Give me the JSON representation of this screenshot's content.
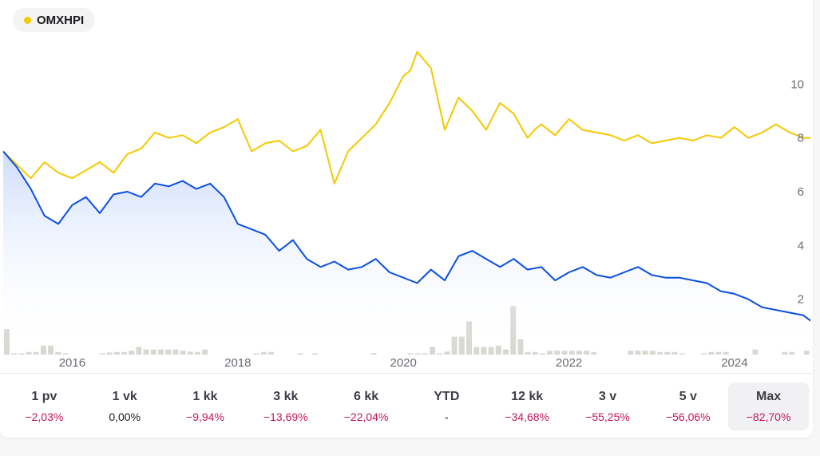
{
  "legend": {
    "label": "OMXHPI",
    "dot_color": "#f5c800"
  },
  "colors": {
    "index_line": "#f5c800",
    "price_line": "#0b4fe0",
    "volume": "#d9d7d2",
    "area_top": "#c9d9fb"
  },
  "chart_data": {
    "type": "line",
    "title": "",
    "xlabel": "",
    "ylabel": "",
    "x_ticks": [
      "2016",
      "2018",
      "2020",
      "2022",
      "2024"
    ],
    "y_ticks": [
      "2",
      "4",
      "6",
      "8",
      "10"
    ],
    "ylim": [
      0,
      12
    ],
    "x_range": [
      "2015-03",
      "2024-12"
    ],
    "grid": false,
    "series": [
      {
        "name": "OMXHPI",
        "color": "#f5c800",
        "x": [
          "2015-03",
          "2015-05",
          "2015-07",
          "2015-09",
          "2015-11",
          "2016-01",
          "2016-03",
          "2016-05",
          "2016-07",
          "2016-09",
          "2016-11",
          "2017-01",
          "2017-03",
          "2017-05",
          "2017-07",
          "2017-09",
          "2017-11",
          "2018-01",
          "2018-03",
          "2018-05",
          "2018-07",
          "2018-09",
          "2018-11",
          "2019-01",
          "2019-03",
          "2019-05",
          "2019-07",
          "2019-09",
          "2019-11",
          "2020-01",
          "2020-02",
          "2020-03",
          "2020-05",
          "2020-07",
          "2020-09",
          "2020-11",
          "2021-01",
          "2021-03",
          "2021-05",
          "2021-07",
          "2021-08",
          "2021-09",
          "2021-11",
          "2022-01",
          "2022-03",
          "2022-05",
          "2022-07",
          "2022-09",
          "2022-11",
          "2023-01",
          "2023-03",
          "2023-05",
          "2023-07",
          "2023-09",
          "2023-11",
          "2024-01",
          "2024-03",
          "2024-05",
          "2024-07",
          "2024-09",
          "2024-11",
          "2024-12"
        ],
        "y": [
          7.5,
          7.0,
          6.5,
          7.1,
          6.7,
          6.5,
          6.8,
          7.1,
          6.7,
          7.4,
          7.6,
          8.2,
          8.0,
          8.1,
          7.8,
          8.2,
          8.4,
          8.7,
          7.5,
          7.8,
          7.9,
          7.5,
          7.7,
          8.3,
          6.3,
          7.5,
          8.0,
          8.5,
          9.3,
          10.3,
          10.5,
          11.2,
          10.6,
          8.3,
          9.5,
          9.0,
          8.3,
          9.3,
          8.9,
          8.0,
          8.3,
          8.5,
          8.1,
          8.7,
          8.3,
          8.2,
          8.1,
          7.9,
          8.1,
          7.8,
          7.9,
          8.0,
          7.9,
          8.1,
          8.0,
          8.4,
          8.0,
          8.2,
          8.5,
          8.2,
          8.0,
          8.0
        ]
      },
      {
        "name": "",
        "color": "#0b4fe0",
        "x": [
          "2015-03",
          "2015-05",
          "2015-07",
          "2015-09",
          "2015-11",
          "2016-01",
          "2016-03",
          "2016-05",
          "2016-07",
          "2016-09",
          "2016-11",
          "2017-01",
          "2017-03",
          "2017-05",
          "2017-07",
          "2017-09",
          "2017-11",
          "2018-01",
          "2018-03",
          "2018-05",
          "2018-07",
          "2018-09",
          "2018-11",
          "2019-01",
          "2019-03",
          "2019-05",
          "2019-07",
          "2019-09",
          "2019-11",
          "2020-01",
          "2020-03",
          "2020-05",
          "2020-07",
          "2020-09",
          "2020-11",
          "2021-01",
          "2021-03",
          "2021-05",
          "2021-07",
          "2021-09",
          "2021-11",
          "2022-01",
          "2022-03",
          "2022-05",
          "2022-07",
          "2022-09",
          "2022-11",
          "2023-01",
          "2023-03",
          "2023-05",
          "2023-07",
          "2023-09",
          "2023-11",
          "2024-01",
          "2024-03",
          "2024-05",
          "2024-07",
          "2024-09",
          "2024-11",
          "2024-12"
        ],
        "y": [
          7.5,
          6.9,
          6.1,
          5.1,
          4.8,
          5.5,
          5.8,
          5.2,
          5.9,
          6.0,
          5.8,
          6.3,
          6.2,
          6.4,
          6.1,
          6.3,
          5.8,
          4.8,
          4.6,
          4.4,
          3.8,
          4.2,
          3.5,
          3.2,
          3.4,
          3.1,
          3.2,
          3.5,
          3.0,
          2.8,
          2.6,
          3.1,
          2.7,
          3.6,
          3.8,
          3.5,
          3.2,
          3.5,
          3.1,
          3.2,
          2.7,
          3.0,
          3.2,
          2.9,
          2.8,
          3.0,
          3.2,
          2.9,
          2.8,
          2.8,
          2.7,
          2.6,
          2.3,
          2.2,
          2.0,
          1.7,
          1.6,
          1.5,
          1.4,
          1.2
        ]
      }
    ],
    "volume": [
      1.0,
      0.05,
      0.05,
      0.1,
      0.1,
      0.35,
      0.35,
      0.1,
      0.05,
      0,
      0,
      0,
      0,
      0.05,
      0.08,
      0.1,
      0.1,
      0.15,
      0.3,
      0.2,
      0.2,
      0.2,
      0.2,
      0.2,
      0.15,
      0.12,
      0.1,
      0.2,
      0,
      0,
      0,
      0,
      0,
      0,
      0.05,
      0.1,
      0.1,
      0,
      0,
      0,
      0.05,
      0,
      0.05,
      0,
      0,
      0,
      0,
      0,
      0,
      0,
      0.06,
      0,
      0,
      0,
      0,
      0.05,
      0.05,
      0.05,
      0.3,
      0.05,
      0.12,
      0.7,
      0.7,
      1.3,
      0.3,
      0.3,
      0.3,
      0.35,
      0.2,
      1.9,
      0.6,
      0.1,
      0.1,
      0.05,
      0.15,
      0.15,
      0.15,
      0.15,
      0.15,
      0.15,
      0.1,
      0,
      0,
      0,
      0,
      0.15,
      0.15,
      0.15,
      0.15,
      0.1,
      0.1,
      0.1,
      0.05,
      0,
      0,
      0.05,
      0.1,
      0.1,
      0.1,
      0,
      0,
      0,
      0.2,
      0,
      0,
      0,
      0.1,
      0.1,
      0,
      0.15
    ]
  },
  "periods": [
    {
      "label": "1 pv",
      "value": "−2,03%",
      "negative": true,
      "active": false
    },
    {
      "label": "1 vk",
      "value": "0,00%",
      "negative": false,
      "active": false
    },
    {
      "label": "1 kk",
      "value": "−9,94%",
      "negative": true,
      "active": false
    },
    {
      "label": "3 kk",
      "value": "−13,69%",
      "negative": true,
      "active": false
    },
    {
      "label": "6 kk",
      "value": "−22,04%",
      "negative": true,
      "active": false
    },
    {
      "label": "YTD",
      "value": "-",
      "negative": false,
      "active": false
    },
    {
      "label": "12 kk",
      "value": "−34,68%",
      "negative": true,
      "active": false
    },
    {
      "label": "3 v",
      "value": "−55,25%",
      "negative": true,
      "active": false
    },
    {
      "label": "5 v",
      "value": "−56,06%",
      "negative": true,
      "active": false
    },
    {
      "label": "Max",
      "value": "−82,70%",
      "negative": true,
      "active": true
    }
  ]
}
